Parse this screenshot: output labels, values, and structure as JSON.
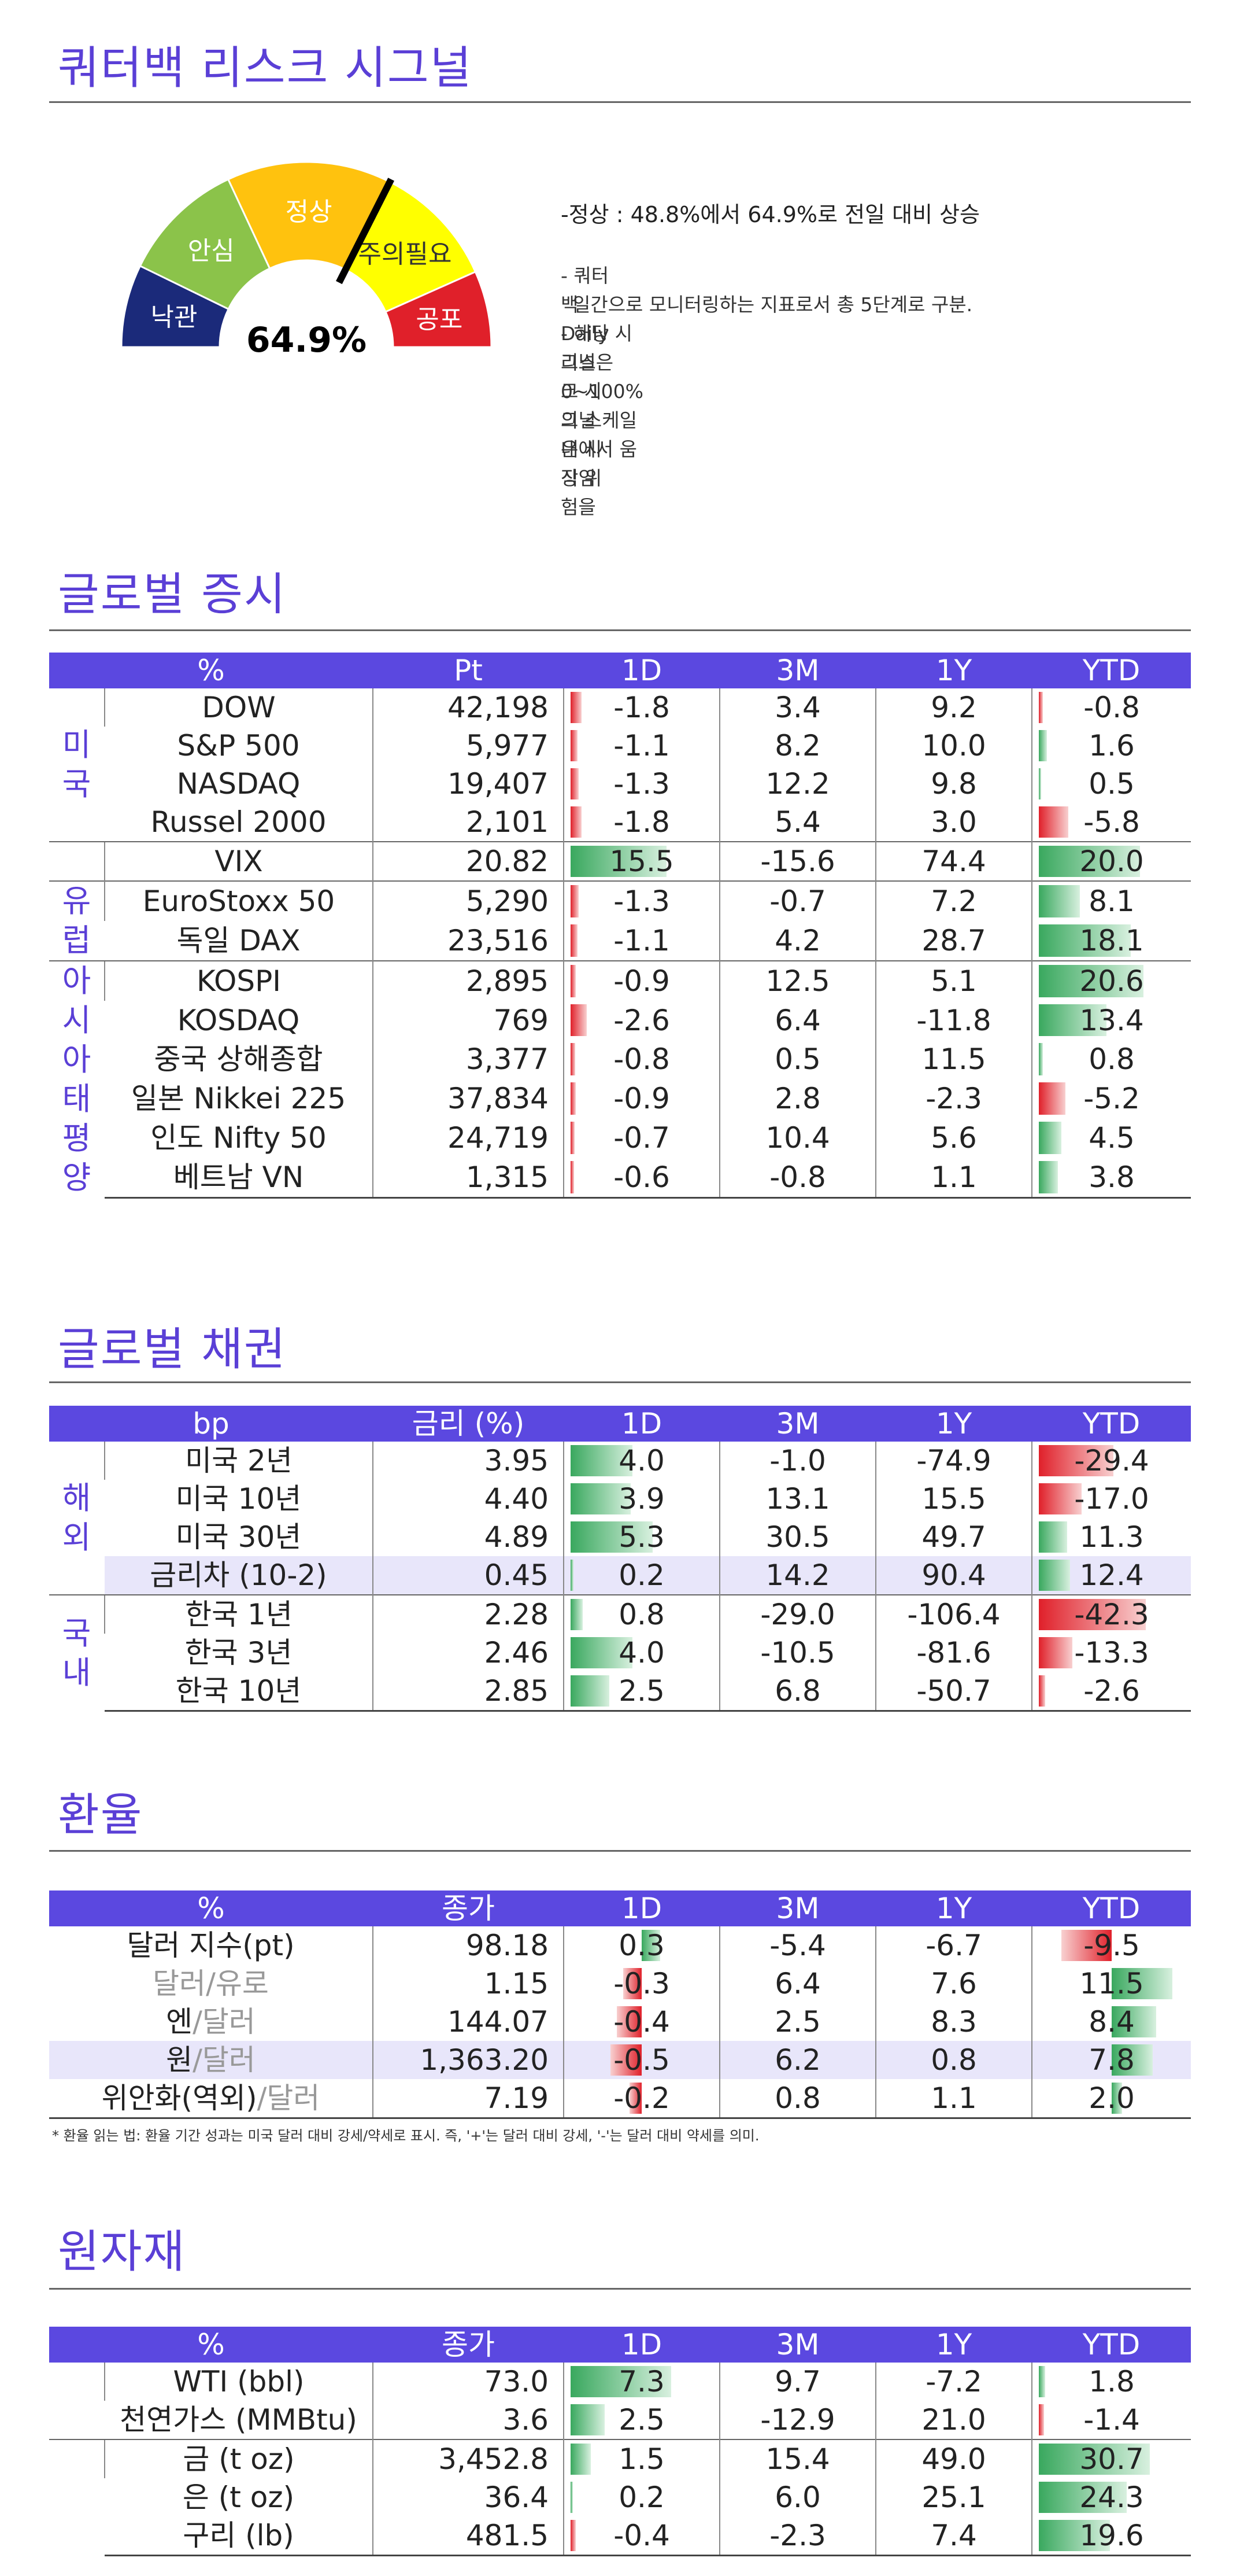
{
  "risk": {
    "title": "쿼터백 리스크 시그널",
    "value_label": "64.9%",
    "value": 64.9,
    "segments": [
      {
        "label": "낙관",
        "color": "#1b2a7a"
      },
      {
        "label": "안심",
        "color": "#8bc34a"
      },
      {
        "label": "정상",
        "color": "#ffc20e"
      },
      {
        "label": "주의필요",
        "color": "#ffff00"
      },
      {
        "label": "공포",
        "color": "#e0202a"
      }
    ],
    "headline": "-정상 : 48.8%에서 64.9%로 전일 대비 상승",
    "notes": [
      "- 쿼터백 Daily 리스크 시그널은 시장 위험을",
      "  일간으로 모니터링하는 지표로서 총 5단계로 구분.",
      "- 해당 시그널은 0~100%의 스케일 내에서 움직임"
    ]
  },
  "equity": {
    "title": "글로벌 증시",
    "headers": [
      "%",
      "Pt",
      "1D",
      "3M",
      "1Y",
      "YTD"
    ],
    "groups": [
      {
        "label": [
          "미",
          "국"
        ],
        "rows": [
          {
            "name": "DOW",
            "pt": "42,198",
            "d1": -1.8,
            "m3": "3.4",
            "y1": "9.2",
            "ytd": -0.8
          },
          {
            "name": "S&P 500",
            "pt": "5,977",
            "d1": -1.1,
            "m3": "8.2",
            "y1": "10.0",
            "ytd": 1.6
          },
          {
            "name": "NASDAQ",
            "pt": "19,407",
            "d1": -1.3,
            "m3": "12.2",
            "y1": "9.8",
            "ytd": 0.5
          },
          {
            "name": "Russel 2000",
            "pt": "2,101",
            "d1": -1.8,
            "m3": "5.4",
            "y1": "3.0",
            "ytd": -5.8
          }
        ]
      },
      {
        "label": [],
        "rows": [
          {
            "name": "VIX",
            "pt": "20.82",
            "d1": 15.5,
            "m3": "-15.6",
            "y1": "74.4",
            "ytd": 20.0
          }
        ]
      },
      {
        "label": [
          "유",
          "럽"
        ],
        "rows": [
          {
            "name": "EuroStoxx 50",
            "pt": "5,290",
            "d1": -1.3,
            "m3": "-0.7",
            "y1": "7.2",
            "ytd": 8.1
          },
          {
            "name": "독일 DAX",
            "pt": "23,516",
            "d1": -1.1,
            "m3": "4.2",
            "y1": "28.7",
            "ytd": 18.1
          }
        ]
      },
      {
        "label": [
          "아",
          "시",
          "아",
          "태",
          "평",
          "양"
        ],
        "rows": [
          {
            "name": "KOSPI",
            "pt": "2,895",
            "d1": -0.9,
            "m3": "12.5",
            "y1": "5.1",
            "ytd": 20.6
          },
          {
            "name": "KOSDAQ",
            "pt": "769",
            "d1": -2.6,
            "m3": "6.4",
            "y1": "-11.8",
            "ytd": 13.4
          },
          {
            "name": "중국 상해종합",
            "pt": "3,377",
            "d1": -0.8,
            "m3": "0.5",
            "y1": "11.5",
            "ytd": 0.8
          },
          {
            "name": "일본 Nikkei 225",
            "pt": "37,834",
            "d1": -0.9,
            "m3": "2.8",
            "y1": "-2.3",
            "ytd": -5.2
          },
          {
            "name": "인도 Nifty 50",
            "pt": "24,719",
            "d1": -0.7,
            "m3": "10.4",
            "y1": "5.6",
            "ytd": 4.5
          },
          {
            "name": "베트남 VN",
            "pt": "1,315",
            "d1": -0.6,
            "m3": "-0.8",
            "y1": "1.1",
            "ytd": 3.8
          }
        ]
      }
    ]
  },
  "bonds": {
    "title": "글로벌 채권",
    "headers": [
      "bp",
      "금리 (%)",
      "1D",
      "3M",
      "1Y",
      "YTD"
    ],
    "groups": [
      {
        "label": [
          "해",
          "외"
        ],
        "rows": [
          {
            "name": "미국 2년",
            "pt": "3.95",
            "d1": 4.0,
            "m3": "-1.0",
            "y1": "-74.9",
            "ytd": -29.4
          },
          {
            "name": "미국 10년",
            "pt": "4.40",
            "d1": 3.9,
            "m3": "13.1",
            "y1": "15.5",
            "ytd": -17.0
          },
          {
            "name": "미국 30년",
            "pt": "4.89",
            "d1": 5.3,
            "m3": "30.5",
            "y1": "49.7",
            "ytd": 11.3
          },
          {
            "name": "금리차 (10-2)",
            "pt": "0.45",
            "d1": 0.2,
            "m3": "14.2",
            "y1": "90.4",
            "ytd": 12.4,
            "hl": true
          }
        ]
      },
      {
        "label": [
          "국",
          "내"
        ],
        "rows": [
          {
            "name": "한국 1년",
            "pt": "2.28",
            "d1": 0.8,
            "m3": "-29.0",
            "y1": "-106.4",
            "ytd": -42.3
          },
          {
            "name": "한국 3년",
            "pt": "2.46",
            "d1": 4.0,
            "m3": "-10.5",
            "y1": "-81.6",
            "ytd": -13.3
          },
          {
            "name": "한국 10년",
            "pt": "2.85",
            "d1": 2.5,
            "m3": "6.8",
            "y1": "-50.7",
            "ytd": -2.6
          }
        ]
      }
    ]
  },
  "fx": {
    "title": "환율",
    "headers": [
      "%",
      "종가",
      "1D",
      "3M",
      "1Y",
      "YTD"
    ],
    "rows": [
      {
        "name": [
          "달러 지수(pt)"
        ],
        "pt": "98.18",
        "d1": 0.3,
        "m3": "-5.4",
        "y1": "-6.7",
        "ytd": -9.5
      },
      {
        "name": [
          "달러",
          "/유로"
        ],
        "pt": "1.15",
        "d1": -0.3,
        "m3": "6.4",
        "y1": "7.6",
        "ytd": 11.5
      },
      {
        "name": [
          "엔",
          "/달러"
        ],
        "pt": "144.07",
        "d1": -0.4,
        "m3": "2.5",
        "y1": "8.3",
        "ytd": 8.4
      },
      {
        "name": [
          "원",
          "/달러"
        ],
        "pt": "1,363.20",
        "d1": -0.5,
        "m3": "6.2",
        "y1": "0.8",
        "ytd": 7.8,
        "hl": true
      },
      {
        "name": [
          "위안화(역외)",
          "/달러"
        ],
        "pt": "7.19",
        "d1": -0.2,
        "m3": "0.8",
        "y1": "1.1",
        "ytd": 2.0
      }
    ],
    "footnote": "* 환율 읽는 법: 환율 기간 성과는 미국 달러 대비 강세/약세로 표시. 즉, '+'는 달러 대비 강세, '-'는 달러 대비 약세를 의미."
  },
  "commodities": {
    "title": "원자재",
    "headers": [
      "%",
      "종가",
      "1D",
      "3M",
      "1Y",
      "YTD"
    ],
    "groups": [
      {
        "rows": [
          {
            "name": "WTI (bbl)",
            "pt": "73.0",
            "d1": 7.3,
            "m3": "9.7",
            "y1": "-7.2",
            "ytd": 1.8
          },
          {
            "name": "천연가스 (MMBtu)",
            "pt": "3.6",
            "d1": 2.5,
            "m3": "-12.9",
            "y1": "21.0",
            "ytd": -1.4
          }
        ]
      },
      {
        "rows": [
          {
            "name": "금 (t oz)",
            "pt": "3,452.8",
            "d1": 1.5,
            "m3": "15.4",
            "y1": "49.0",
            "ytd": 30.7
          },
          {
            "name": "은 (t oz)",
            "pt": "36.4",
            "d1": 0.2,
            "m3": "6.0",
            "y1": "25.1",
            "ytd": 24.3
          },
          {
            "name": "구리 (lb)",
            "pt": "481.5",
            "d1": -0.4,
            "m3": "-2.3",
            "y1": "7.4",
            "ytd": 19.6
          }
        ]
      }
    ]
  },
  "colors": {
    "accent": "#5a3fd6",
    "header": "#5b48e0",
    "pos": "#3cb064",
    "neg": "#e0202a",
    "highlight": "#e8e6fa"
  }
}
